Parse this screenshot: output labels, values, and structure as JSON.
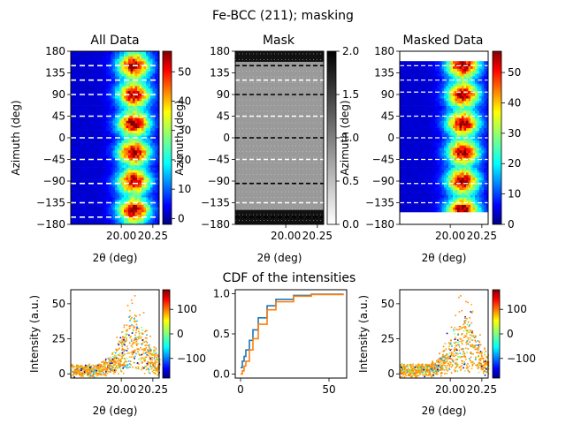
{
  "figure": {
    "suptitle": "Fe-BCC (211); masking",
    "middle_title": "CDF of the intensities"
  },
  "chart_data": [
    {
      "type": "heatmap",
      "title": "All Data",
      "xlabel": "2θ (deg)",
      "ylabel": "Azimuth (deg)",
      "xlim": [
        19.6,
        20.3
      ],
      "ylim": [
        -180,
        180
      ],
      "xticks": [
        "20.00",
        "20.25"
      ],
      "xtick_values": [
        20.0,
        20.25
      ],
      "yticks": [
        "180",
        "135",
        "90",
        "45",
        "0",
        "−45",
        "−90",
        "−135",
        "−180"
      ],
      "ytick_values": [
        180,
        135,
        90,
        45,
        0,
        -45,
        -90,
        -135,
        -180
      ],
      "colormap": "jet",
      "colorbar": {
        "ticks": [
          "50",
          "40",
          "30",
          "20",
          "10",
          "0"
        ],
        "tick_values": [
          50,
          40,
          30,
          20,
          10,
          0
        ],
        "range": [
          -2,
          57
        ]
      },
      "peak_center_2theta": 20.1,
      "bright_azimuths": [
        150,
        90,
        30,
        -30,
        -90,
        -150
      ],
      "mask_azimuths": [
        150,
        120,
        90,
        45,
        0,
        -45,
        -95,
        -135,
        -165
      ]
    },
    {
      "type": "heatmap",
      "title": "Mask",
      "xlabel": "2θ (deg)",
      "ylabel": "Azimuth (deg)",
      "xlim": [
        19.6,
        20.3
      ],
      "ylim": [
        -180,
        180
      ],
      "xticks": [
        "20.00",
        "20.25"
      ],
      "xtick_values": [
        20.0,
        20.25
      ],
      "yticks": [
        "180",
        "135",
        "90",
        "45",
        "0",
        "−45",
        "−90",
        "−135",
        "−180"
      ],
      "ytick_values": [
        180,
        135,
        90,
        45,
        0,
        -45,
        -90,
        -135,
        -180
      ],
      "colormap": "gray_r",
      "colorbar": {
        "ticks": [
          "2.0",
          "1.5",
          "1.0",
          "0.5",
          "0.0"
        ],
        "tick_values": [
          2.0,
          1.5,
          1.0,
          0.5,
          0.0
        ],
        "range": [
          0,
          2
        ]
      },
      "mask_azimuths": [
        150,
        120,
        90,
        45,
        0,
        -45,
        -95,
        -135,
        -165
      ]
    },
    {
      "type": "heatmap",
      "title": "Masked Data",
      "xlabel": "2θ (deg)",
      "ylabel": "Azimuth (deg)",
      "xlim": [
        19.6,
        20.3
      ],
      "ylim": [
        -180,
        180
      ],
      "xticks": [
        "20.00",
        "20.25"
      ],
      "xtick_values": [
        20.0,
        20.25
      ],
      "yticks": [
        "180",
        "135",
        "90",
        "45",
        "0",
        "−45",
        "−90",
        "−135",
        "−180"
      ],
      "ytick_values": [
        180,
        135,
        90,
        45,
        0,
        -45,
        -90,
        -135,
        -180
      ],
      "colormap": "jet",
      "colorbar": {
        "ticks": [
          "50",
          "40",
          "30",
          "20",
          "10",
          "0"
        ],
        "tick_values": [
          50,
          40,
          30,
          20,
          10,
          0
        ],
        "range": [
          0,
          57
        ]
      },
      "data_azimuth_range": [
        -150,
        155
      ],
      "bright_azimuths": [
        150,
        90,
        30,
        -30,
        -90,
        -150
      ]
    },
    {
      "type": "scatter",
      "xlabel": "2θ (deg)",
      "ylabel": "Intensity (a.u.)",
      "xlim": [
        19.6,
        20.3
      ],
      "ylim": [
        -3,
        60
      ],
      "xticks": [
        "20.00",
        "20.25"
      ],
      "xtick_values": [
        20.0,
        20.25
      ],
      "yticks": [
        "50",
        "25",
        "0"
      ],
      "ytick_values": [
        50,
        25,
        0
      ],
      "colormap": "jet",
      "colorbar": {
        "ticks": [
          "100",
          "0",
          "−100"
        ],
        "tick_values": [
          100,
          0,
          -100
        ],
        "range": [
          -180,
          180
        ]
      },
      "peak_center": 20.1,
      "peak_height": 35,
      "background": 5
    },
    {
      "type": "line",
      "xlim": [
        -3,
        60
      ],
      "ylim": [
        -0.05,
        1.05
      ],
      "xticks": [
        "0",
        "50"
      ],
      "xtick_values": [
        0,
        50
      ],
      "yticks": [
        "1.0",
        "0.5",
        "0.0"
      ],
      "ytick_values": [
        1.0,
        0.5,
        0.0
      ],
      "series": [
        {
          "color": "#1f77b4",
          "x": [
            0,
            1,
            2,
            3,
            5,
            7,
            10,
            15,
            20,
            30,
            40,
            58
          ],
          "y": [
            0.08,
            0.16,
            0.22,
            0.3,
            0.42,
            0.55,
            0.7,
            0.85,
            0.93,
            0.98,
            0.995,
            1.0
          ]
        },
        {
          "color": "#ff7f0e",
          "x": [
            0,
            1,
            2,
            3,
            5,
            7,
            10,
            15,
            20,
            30,
            40,
            58
          ],
          "y": [
            0.0,
            0.04,
            0.1,
            0.16,
            0.3,
            0.44,
            0.62,
            0.8,
            0.9,
            0.97,
            0.99,
            1.0
          ]
        }
      ]
    },
    {
      "type": "scatter",
      "xlabel": "2θ (deg)",
      "ylabel": "Intensity (a.u.)",
      "xlim": [
        19.6,
        20.3
      ],
      "ylim": [
        -3,
        60
      ],
      "xticks": [
        "20.00",
        "20.25"
      ],
      "xtick_values": [
        20.0,
        20.25
      ],
      "yticks": [
        "50",
        "25",
        "0"
      ],
      "ytick_values": [
        50,
        25,
        0
      ],
      "colormap": "jet",
      "colorbar": {
        "ticks": [
          "100",
          "0",
          "−100"
        ],
        "tick_values": [
          100,
          0,
          -100
        ],
        "range": [
          -180,
          180
        ]
      },
      "peak_center": 20.1,
      "peak_height": 35,
      "background": 5
    }
  ]
}
